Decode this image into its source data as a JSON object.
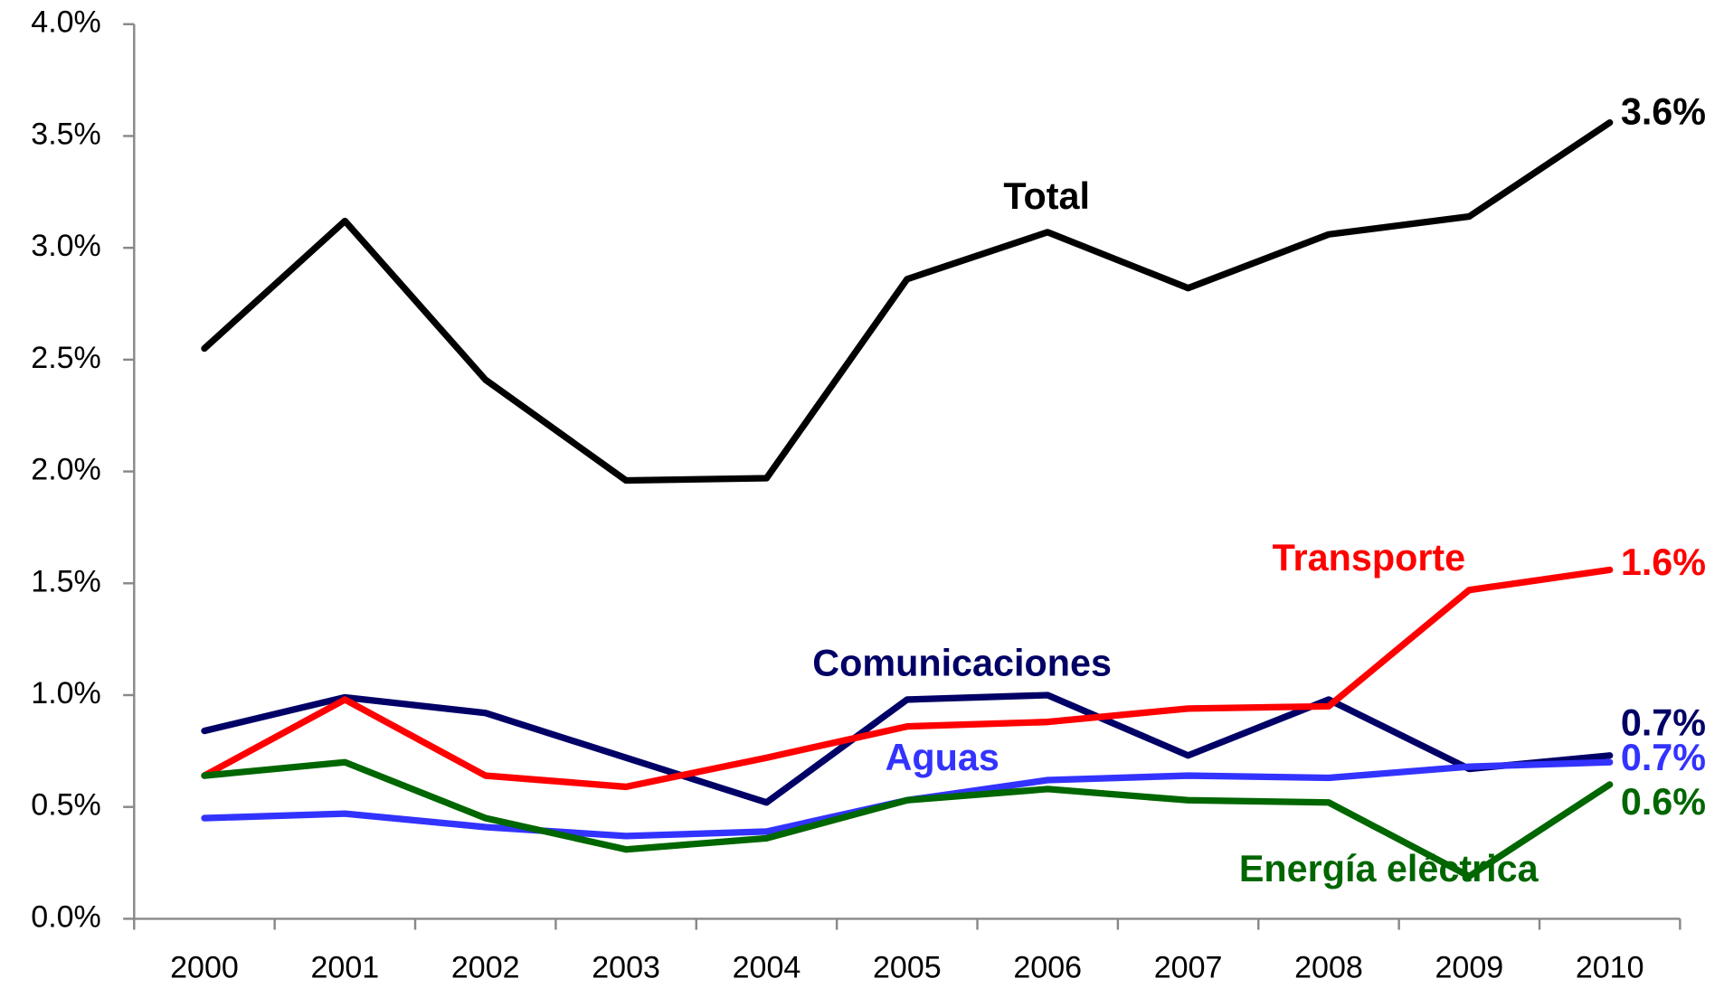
{
  "chart_data": {
    "type": "line",
    "categories": [
      "2000",
      "2001",
      "2002",
      "2003",
      "2004",
      "2005",
      "2006",
      "2007",
      "2008",
      "2009",
      "2010"
    ],
    "series": [
      {
        "name": "Total",
        "color": "#000000",
        "values": [
          2.55,
          3.12,
          2.41,
          1.96,
          1.97,
          2.86,
          3.07,
          2.82,
          3.06,
          3.14,
          3.56
        ],
        "value_labels": [
          null,
          null,
          null,
          null,
          null,
          null,
          null,
          null,
          null,
          null,
          "3.6%"
        ]
      },
      {
        "name": "Comunicaciones",
        "color": "#000066",
        "values": [
          0.84,
          0.99,
          0.92,
          0.72,
          0.52,
          0.98,
          1.0,
          0.73,
          0.98,
          0.67,
          0.73
        ],
        "value_labels": [
          null,
          null,
          null,
          null,
          null,
          null,
          null,
          null,
          null,
          null,
          "0.7%"
        ]
      },
      {
        "name": "Transporte",
        "color": "#ff0000",
        "values": [
          0.64,
          0.98,
          0.64,
          0.59,
          0.72,
          0.86,
          0.88,
          0.94,
          0.95,
          1.47,
          1.56
        ],
        "value_labels": [
          null,
          null,
          null,
          null,
          null,
          null,
          null,
          null,
          null,
          null,
          "1.6%"
        ]
      },
      {
        "name": "Aguas",
        "color": "#3333ff",
        "values": [
          0.45,
          0.47,
          0.41,
          0.37,
          0.39,
          0.53,
          0.62,
          0.64,
          0.63,
          0.68,
          0.7
        ],
        "value_labels": [
          null,
          null,
          null,
          null,
          null,
          null,
          null,
          null,
          null,
          null,
          "0.7%"
        ]
      },
      {
        "name": "Energía eléctrica",
        "color": "#006600",
        "values": [
          0.64,
          0.7,
          0.45,
          0.31,
          0.36,
          0.53,
          0.58,
          0.53,
          0.52,
          0.19,
          0.6
        ],
        "value_labels": [
          null,
          null,
          null,
          null,
          null,
          null,
          null,
          null,
          null,
          null,
          "0.6%"
        ]
      }
    ],
    "ylim": [
      0,
      4
    ],
    "yticks": [
      {
        "value": 0,
        "label": "0.0%"
      },
      {
        "value": 0.5,
        "label": "0.5%"
      },
      {
        "value": 1,
        "label": "1.0%"
      },
      {
        "value": 1.5,
        "label": "1.5%"
      },
      {
        "value": 2,
        "label": "2.0%"
      },
      {
        "value": 2.5,
        "label": "2.5%"
      },
      {
        "value": 3,
        "label": "3.0%"
      },
      {
        "value": 3.5,
        "label": "3.5%"
      },
      {
        "value": 4,
        "label": "4.0%"
      }
    ],
    "grid": false
  }
}
